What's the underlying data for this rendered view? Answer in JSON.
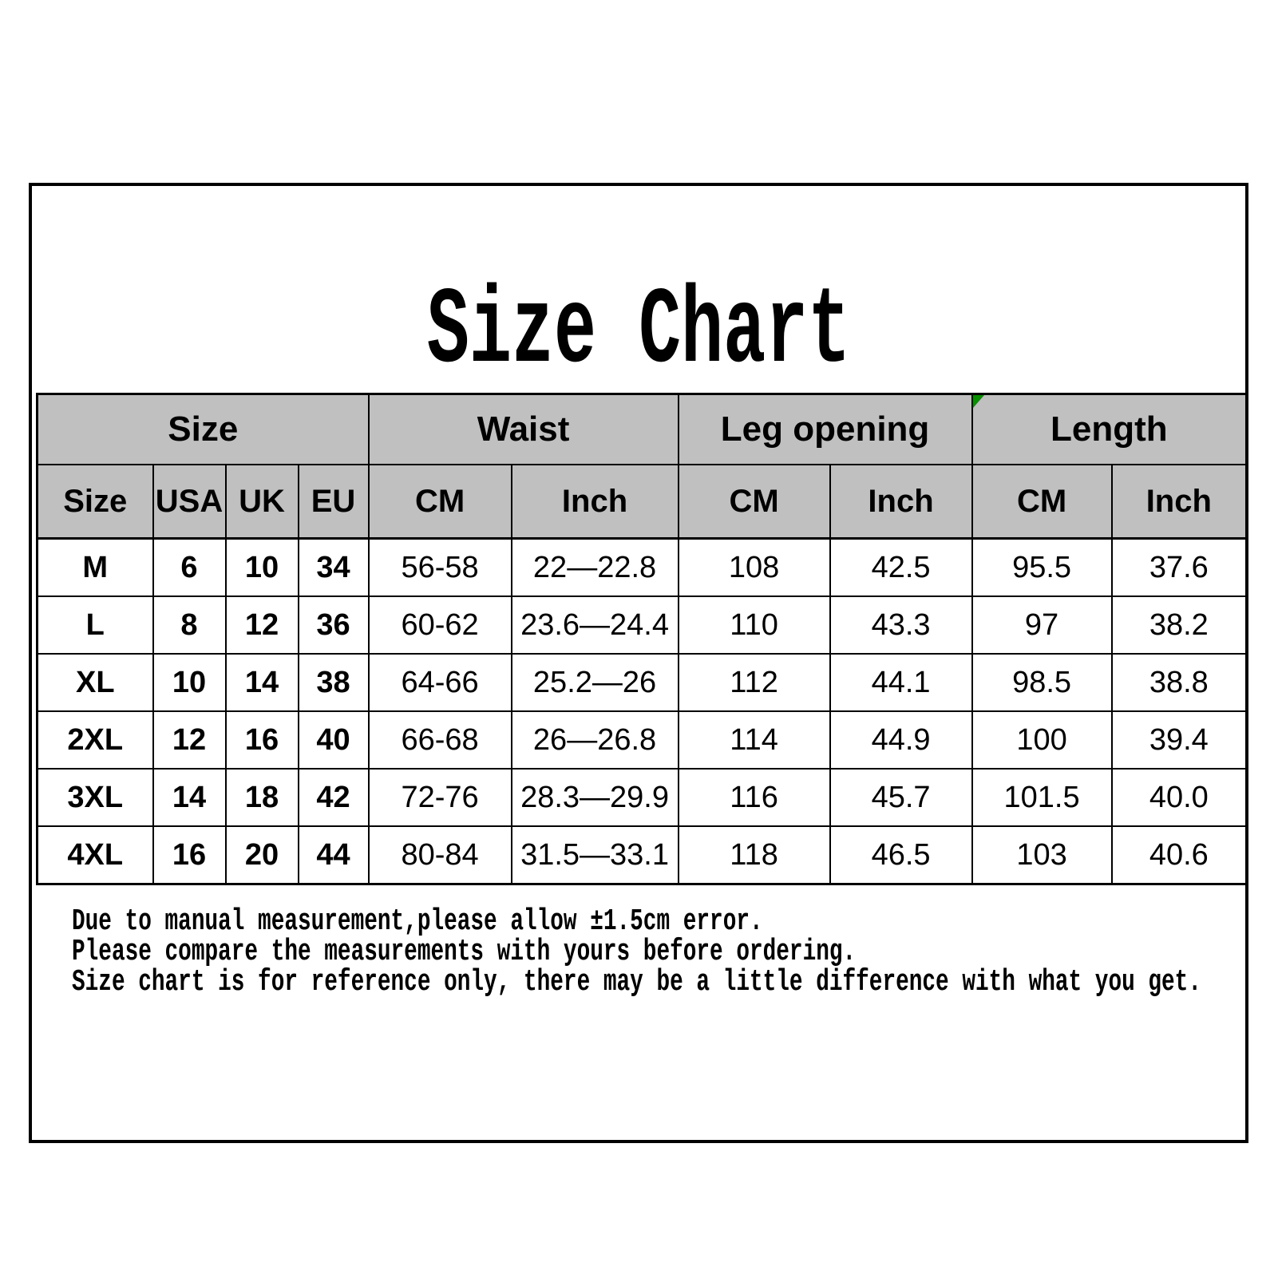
{
  "page": {
    "title": "Size Chart",
    "background": "#ffffff",
    "frame_border_color": "#000000"
  },
  "table": {
    "colors": {
      "header_bg": "#c0c0c0",
      "border": "#000000",
      "text": "#000000",
      "corner_marker_green": "#089000"
    },
    "group_headers": [
      {
        "label": "Size",
        "colspan": 4
      },
      {
        "label": "Waist",
        "colspan": 2
      },
      {
        "label": "Leg opening",
        "colspan": 2
      },
      {
        "label": "Length",
        "colspan": 2
      }
    ],
    "sub_headers": [
      "Size",
      "USA",
      "UK",
      "EU",
      "CM",
      "Inch",
      "CM",
      "Inch",
      "CM",
      "Inch"
    ],
    "rows": [
      [
        "M",
        "6",
        "10",
        "34",
        "56-58",
        "22—22.8",
        "108",
        "42.5",
        "95.5",
        "37.6"
      ],
      [
        "L",
        "8",
        "12",
        "36",
        "60-62",
        "23.6—24.4",
        "110",
        "43.3",
        "97",
        "38.2"
      ],
      [
        "XL",
        "10",
        "14",
        "38",
        "64-66",
        "25.2—26",
        "112",
        "44.1",
        "98.5",
        "38.8"
      ],
      [
        "2XL",
        "12",
        "16",
        "40",
        "66-68",
        "26—26.8",
        "114",
        "44.9",
        "100",
        "39.4"
      ],
      [
        "3XL",
        "14",
        "18",
        "42",
        "72-76",
        "28.3—29.9",
        "116",
        "45.7",
        "101.5",
        "40.0"
      ],
      [
        "4XL",
        "16",
        "20",
        "44",
        "80-84",
        "31.5—33.1",
        "118",
        "46.5",
        "103",
        "40.6"
      ]
    ]
  },
  "notes": [
    "Due to manual measurement,please allow ±1.5cm error.",
    "Please compare the measurements with yours before ordering.",
    "Size chart is for reference only, there may be a little difference with what you get."
  ]
}
